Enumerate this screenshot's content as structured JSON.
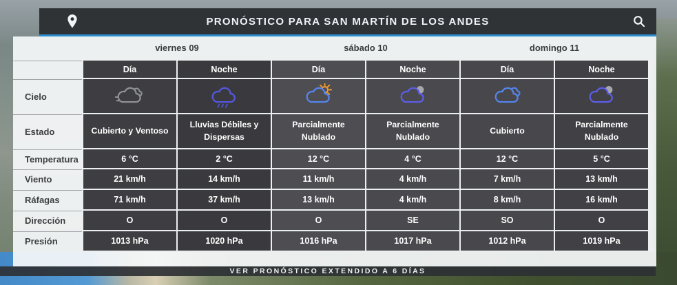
{
  "header": {
    "title": "PRONÓSTICO PARA SAN MARTÍN DE LOS ANDES",
    "location_icon": "map-pin-icon",
    "search_icon": "search-icon"
  },
  "colors": {
    "accent_blue": "#2d8fd0",
    "header_dark": "#2c2f33",
    "cell_dark": "#3e3e42",
    "cell_light": "#4d4d52",
    "icon_gray": "#909196",
    "icon_indigo": "#5457e0",
    "icon_blue": "#5585ea",
    "icon_violet": "#5d5de8",
    "icon_orange": "#f49a2b",
    "icon_moon_gray": "#a6a7ab"
  },
  "table": {
    "row_labels": {
      "cielo": "Cielo",
      "estado": "Estado",
      "temperatura": "Temperatura",
      "viento": "Viento",
      "rafagas": "Ráfagas",
      "direccion": "Dirección",
      "presion": "Presión"
    },
    "days": [
      {
        "name": "viernes 09",
        "periods": [
          {
            "header": "Día",
            "icon": "wind-cloud-icon",
            "estado": "Cubierto y Ventoso",
            "temperatura": "6 °C",
            "viento": "21 km/h",
            "rafagas": "71 km/h",
            "direccion": "O",
            "presion": "1013 hPa"
          },
          {
            "header": "Noche",
            "icon": "rain-cloud-icon",
            "estado": "Lluvias Débiles y Dispersas",
            "temperatura": "2 °C",
            "viento": "14 km/h",
            "rafagas": "37 km/h",
            "direccion": "O",
            "presion": "1020 hPa"
          }
        ]
      },
      {
        "name": "sábado 10",
        "periods": [
          {
            "header": "Día",
            "icon": "sun-cloud-icon",
            "estado": "Parcialmente Nublado",
            "temperatura": "12 °C",
            "viento": "11 km/h",
            "rafagas": "13 km/h",
            "direccion": "O",
            "presion": "1016 hPa"
          },
          {
            "header": "Noche",
            "icon": "moon-cloud-icon",
            "estado": "Parcialmente Nublado",
            "temperatura": "4 °C",
            "viento": "4 km/h",
            "rafagas": "4 km/h",
            "direccion": "SE",
            "presion": "1017 hPa"
          }
        ]
      },
      {
        "name": "domingo 11",
        "periods": [
          {
            "header": "Día",
            "icon": "clouds-icon",
            "estado": "Cubierto",
            "temperatura": "12 °C",
            "viento": "7 km/h",
            "rafagas": "8 km/h",
            "direccion": "SO",
            "presion": "1012 hPa"
          },
          {
            "header": "Noche",
            "icon": "moon-cloud-icon",
            "estado": "Parcialmente Nublado",
            "temperatura": "5 °C",
            "viento": "13 km/h",
            "rafagas": "16 km/h",
            "direccion": "O",
            "presion": "1019 hPa"
          }
        ]
      }
    ]
  },
  "footer": {
    "link_label": "VER PRONÓSTICO EXTENDIDO A 6 DÍAS"
  }
}
